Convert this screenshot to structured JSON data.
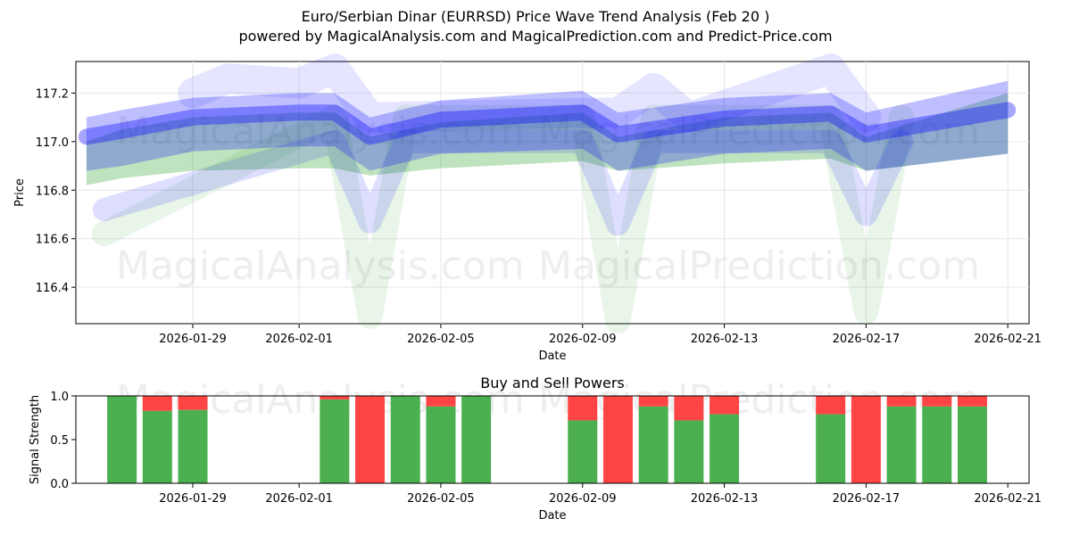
{
  "title": "Euro/Serbian Dinar (EURRSD) Price Wave Trend Analysis (Feb 20 )",
  "subtitle": "powered by MagicalAnalysis.com and MagicalPrediction.com and Predict-Price.com",
  "watermarks": [
    "MagicalAnalysis.com",
    "MagicalPrediction.com"
  ],
  "colors": {
    "blue": "#0000ff",
    "green": "#2ca02c",
    "buy": "#4caf50",
    "sell": "#ff4444",
    "grid": "#e6e6e6"
  },
  "chart_data": [
    {
      "type": "area",
      "title": "",
      "xlabel": "Date",
      "ylabel": "Price",
      "ylim": [
        116.25,
        117.33
      ],
      "xlim": [
        "2026-01-25.7",
        "2026-02-21.6"
      ],
      "xticks": [
        "2026-01-29",
        "2026-02-01",
        "2026-02-05",
        "2026-02-09",
        "2026-02-13",
        "2026-02-17",
        "2026-02-21"
      ],
      "yticks": [
        116.4,
        116.6,
        116.8,
        117.0,
        117.2
      ],
      "series": [
        {
          "name": "green-band-upper",
          "color": "green",
          "x": [
            "2026-01-26",
            "2026-01-27",
            "2026-01-29",
            "2026-02-01",
            "2026-02-02",
            "2026-02-03",
            "2026-02-05",
            "2026-02-09",
            "2026-02-10",
            "2026-02-13",
            "2026-02-16",
            "2026-02-17",
            "2026-02-21"
          ],
          "values": [
            117.0,
            117.05,
            117.1,
            117.12,
            117.12,
            117.02,
            117.08,
            117.12,
            117.02,
            117.1,
            117.12,
            117.02,
            117.2
          ]
        },
        {
          "name": "green-band-lower",
          "color": "green",
          "x": [
            "2026-01-26",
            "2026-01-27",
            "2026-01-29",
            "2026-02-01",
            "2026-02-02",
            "2026-02-03",
            "2026-02-05",
            "2026-02-09",
            "2026-02-10",
            "2026-02-13",
            "2026-02-16",
            "2026-02-17",
            "2026-02-21"
          ],
          "values": [
            116.82,
            116.85,
            116.88,
            116.89,
            116.89,
            116.86,
            116.89,
            116.92,
            116.88,
            116.91,
            116.93,
            116.88,
            116.95
          ]
        },
        {
          "name": "green-wave-low",
          "color": "green",
          "x": [
            "2026-01-26.5",
            "2026-02-02",
            "2026-02-03",
            "2026-02-04",
            "2026-02-09",
            "2026-02-10",
            "2026-02-11",
            "2026-02-16",
            "2026-02-17",
            "2026-02-18"
          ],
          "values": [
            116.62,
            117.1,
            116.28,
            117.1,
            117.1,
            116.26,
            117.1,
            117.1,
            116.3,
            117.1
          ]
        },
        {
          "name": "blue-band-upper",
          "color": "blue",
          "x": [
            "2026-01-26",
            "2026-01-27",
            "2026-01-29",
            "2026-02-01",
            "2026-02-02",
            "2026-02-03",
            "2026-02-05",
            "2026-02-09",
            "2026-02-10",
            "2026-02-13",
            "2026-02-16",
            "2026-02-17",
            "2026-02-21"
          ],
          "values": [
            117.1,
            117.13,
            117.18,
            117.2,
            117.2,
            117.1,
            117.17,
            117.21,
            117.12,
            117.18,
            117.2,
            117.12,
            117.25
          ]
        },
        {
          "name": "blue-band-lower",
          "color": "blue",
          "x": [
            "2026-01-26",
            "2026-01-27",
            "2026-01-29",
            "2026-02-01",
            "2026-02-02",
            "2026-02-03",
            "2026-02-05",
            "2026-02-09",
            "2026-02-10",
            "2026-02-13",
            "2026-02-16",
            "2026-02-17",
            "2026-02-21"
          ],
          "values": [
            116.88,
            116.9,
            116.96,
            116.98,
            116.98,
            116.88,
            116.95,
            116.97,
            116.88,
            116.95,
            116.97,
            116.88,
            116.95
          ]
        },
        {
          "name": "blue-wave-low",
          "color": "blue",
          "x": [
            "2026-01-26.5",
            "2026-02-02",
            "2026-02-03",
            "2026-02-04",
            "2026-02-09",
            "2026-02-10",
            "2026-02-11",
            "2026-02-16",
            "2026-02-17",
            "2026-02-18"
          ],
          "values": [
            116.72,
            117.0,
            116.67,
            117.0,
            117.0,
            116.66,
            117.0,
            117.0,
            116.7,
            117.0
          ]
        },
        {
          "name": "blue-wave-high",
          "color": "blue",
          "x": [
            "2026-01-29",
            "2026-01-30",
            "2026-02-01",
            "2026-02-02",
            "2026-02-03",
            "2026-02-10",
            "2026-02-11",
            "2026-02-12",
            "2026-02-16",
            "2026-02-17"
          ],
          "values": [
            117.2,
            117.26,
            117.24,
            117.3,
            117.1,
            117.12,
            117.22,
            117.1,
            117.3,
            117.1
          ]
        }
      ]
    },
    {
      "type": "bar",
      "title": "Buy and Sell Powers",
      "xlabel": "Date",
      "ylabel": "Signal Strength",
      "ylim": [
        0,
        1
      ],
      "yticks": [
        "0.0",
        "0.5",
        "1.0"
      ],
      "xticks": [
        "2026-01-29",
        "2026-02-01",
        "2026-02-05",
        "2026-02-09",
        "2026-02-13",
        "2026-02-17",
        "2026-02-21"
      ],
      "categories": [
        "2026-01-27",
        "2026-01-28",
        "2026-01-29",
        "2026-02-02",
        "2026-02-03",
        "2026-02-04",
        "2026-02-05",
        "2026-02-06",
        "2026-02-09",
        "2026-02-10",
        "2026-02-11",
        "2026-02-12",
        "2026-02-13",
        "2026-02-16",
        "2026-02-17",
        "2026-02-18",
        "2026-02-19",
        "2026-02-20"
      ],
      "series": [
        {
          "name": "Buy",
          "values": [
            1.0,
            0.83,
            0.84,
            0.96,
            0.0,
            1.0,
            0.88,
            1.0,
            0.72,
            0.0,
            0.88,
            0.72,
            0.79,
            0.79,
            0.0,
            0.88,
            0.88,
            0.88
          ]
        },
        {
          "name": "Sell",
          "values": [
            0.0,
            0.17,
            0.16,
            0.04,
            1.0,
            0.0,
            0.12,
            0.0,
            0.28,
            1.0,
            0.12,
            0.28,
            0.21,
            0.21,
            1.0,
            0.12,
            0.12,
            0.12
          ]
        }
      ]
    }
  ]
}
